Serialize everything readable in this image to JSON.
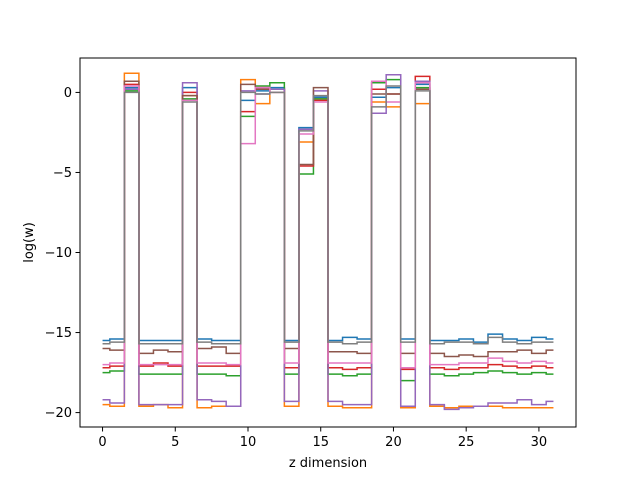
{
  "chart_data": {
    "type": "line",
    "drawstyle": "steps-mid",
    "title": "",
    "xlabel": "z dimension",
    "ylabel": "log(w)",
    "xlim": [
      -1.55,
      32.55
    ],
    "ylim": [
      -20.9,
      2.15
    ],
    "xticks": [
      0,
      5,
      10,
      15,
      20,
      25,
      30
    ],
    "yticks": [
      0,
      -5,
      -10,
      -15,
      -20
    ],
    "ytick_labels": [
      "0",
      "−5",
      "−10",
      "−15",
      "−20"
    ],
    "grid": false,
    "legend": false,
    "x": [
      0,
      1,
      2,
      3,
      4,
      5,
      6,
      7,
      8,
      9,
      10,
      11,
      12,
      13,
      14,
      15,
      16,
      17,
      18,
      19,
      20,
      21,
      22,
      23,
      24,
      25,
      26,
      27,
      28,
      29,
      30,
      31
    ],
    "series": [
      {
        "color": "#1f77b4",
        "values": [
          -15.5,
          -15.4,
          0.3,
          -15.5,
          -15.5,
          -15.5,
          0.3,
          -15.4,
          -15.5,
          -15.5,
          -0.5,
          0.1,
          0.3,
          -15.5,
          -2.2,
          -0.3,
          -15.5,
          -15.3,
          -15.4,
          -0.3,
          0.3,
          -15.4,
          0.5,
          -15.5,
          -15.5,
          -15.4,
          -15.6,
          -15.1,
          -15.4,
          -15.5,
          -15.3,
          -15.4
        ]
      },
      {
        "color": "#ff7f0e",
        "values": [
          -19.5,
          -19.6,
          1.2,
          -19.6,
          -19.5,
          -19.7,
          -0.2,
          -19.7,
          -19.6,
          -19.6,
          0.8,
          -0.7,
          0.2,
          -19.6,
          -3.1,
          -0.4,
          -19.6,
          -19.7,
          -19.7,
          -0.6,
          -0.9,
          -19.7,
          -0.7,
          -19.6,
          -19.7,
          -19.6,
          -19.6,
          -19.6,
          -19.7,
          -19.7,
          -19.7,
          -19.7
        ]
      },
      {
        "color": "#2ca02c",
        "values": [
          -17.5,
          -17.4,
          0.1,
          -17.6,
          -17.6,
          -17.6,
          -0.4,
          -17.6,
          -17.6,
          -17.7,
          -1.5,
          0.4,
          0.6,
          -17.6,
          -5.1,
          -0.4,
          -17.6,
          -17.7,
          -17.6,
          0.6,
          0.8,
          -18.0,
          0.3,
          -17.6,
          -17.7,
          -17.6,
          -17.5,
          -17.4,
          -17.5,
          -17.6,
          -17.5,
          -17.6
        ]
      },
      {
        "color": "#d62728",
        "values": [
          -17.2,
          -17.1,
          0.5,
          -17.1,
          -16.9,
          -17.1,
          0.0,
          -17.1,
          -17.1,
          -17.1,
          -1.2,
          0.3,
          0.2,
          -17.2,
          -4.6,
          -0.5,
          -17.2,
          -17.3,
          -17.2,
          0.2,
          -0.1,
          -17.3,
          1.0,
          -17.2,
          -17.3,
          -17.2,
          -17.2,
          -17.0,
          -17.1,
          -17.2,
          -17.1,
          -17.2
        ]
      },
      {
        "color": "#9467bd",
        "values": [
          -19.2,
          -19.4,
          0.2,
          -19.5,
          -19.5,
          -19.5,
          0.6,
          -19.2,
          -19.3,
          -19.6,
          0.1,
          -0.1,
          0.2,
          -19.3,
          -2.3,
          0.1,
          -19.3,
          -19.5,
          -19.5,
          -1.3,
          1.1,
          -19.6,
          0.7,
          -19.5,
          -19.8,
          -19.7,
          -19.6,
          -19.4,
          -19.4,
          -19.2,
          -19.5,
          -19.3
        ]
      },
      {
        "color": "#8c564b",
        "values": [
          -16.0,
          -16.1,
          0.7,
          -16.3,
          -16.1,
          -16.2,
          -0.2,
          -16.0,
          -15.9,
          -16.3,
          0.5,
          0.2,
          0.0,
          -16.0,
          -4.5,
          0.3,
          -16.2,
          -16.2,
          -16.3,
          -0.1,
          -0.1,
          -16.3,
          0.2,
          -16.3,
          -16.5,
          -16.4,
          -16.5,
          -16.2,
          -16.2,
          -16.1,
          -16.3,
          -16.1
        ]
      },
      {
        "color": "#e377c2",
        "values": [
          -17.0,
          -16.9,
          0.4,
          -17.0,
          -17.0,
          -17.0,
          -0.5,
          -16.9,
          -16.9,
          -17.0,
          -3.2,
          0.3,
          0.0,
          -16.9,
          -2.6,
          -0.6,
          -16.9,
          -16.9,
          -16.9,
          0.7,
          -0.6,
          -17.2,
          0.6,
          -17.0,
          -17.0,
          -16.9,
          -16.9,
          -16.6,
          -16.8,
          -16.9,
          -16.8,
          -16.9
        ]
      },
      {
        "color": "#7f7f7f",
        "values": [
          -15.7,
          -15.6,
          0.0,
          -15.7,
          -15.7,
          -15.7,
          -0.6,
          -15.6,
          -15.7,
          -15.7,
          0.0,
          -0.1,
          0.0,
          -15.6,
          -2.4,
          -0.2,
          -15.6,
          -15.7,
          -15.6,
          -0.9,
          0.4,
          -15.6,
          0.1,
          -15.7,
          -15.6,
          -15.6,
          -15.7,
          -15.3,
          -15.6,
          -15.7,
          -15.6,
          -15.6
        ]
      }
    ]
  }
}
